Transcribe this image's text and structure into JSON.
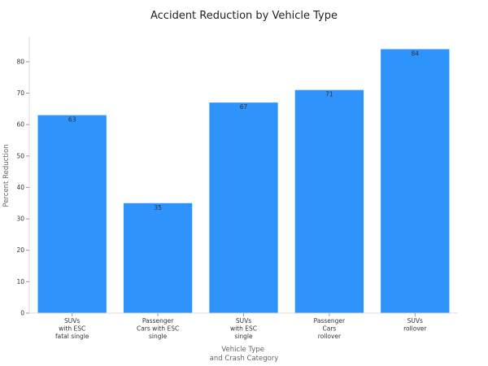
{
  "chart_data": {
    "type": "bar",
    "title": "Accident Reduction by Vehicle Type",
    "xlabel": [
      "Vehicle Type",
      "and Crash Category"
    ],
    "ylabel": "Percent Reduction",
    "categories": [
      [
        "SUVs",
        "with ESC",
        "fatal single"
      ],
      [
        "Passenger",
        "Cars with ESC",
        "single"
      ],
      [
        "SUVs",
        "with ESC",
        "single"
      ],
      [
        "Passenger",
        "Cars",
        "rollover"
      ],
      [
        "SUVs",
        "rollover"
      ]
    ],
    "values": [
      63,
      35,
      67,
      71,
      84
    ],
    "ylim": [
      0,
      88
    ],
    "yticks": [
      0,
      10,
      20,
      30,
      40,
      50,
      60,
      70,
      80
    ],
    "bar_color": "#2e93fa",
    "grid": false,
    "legend": "none"
  }
}
